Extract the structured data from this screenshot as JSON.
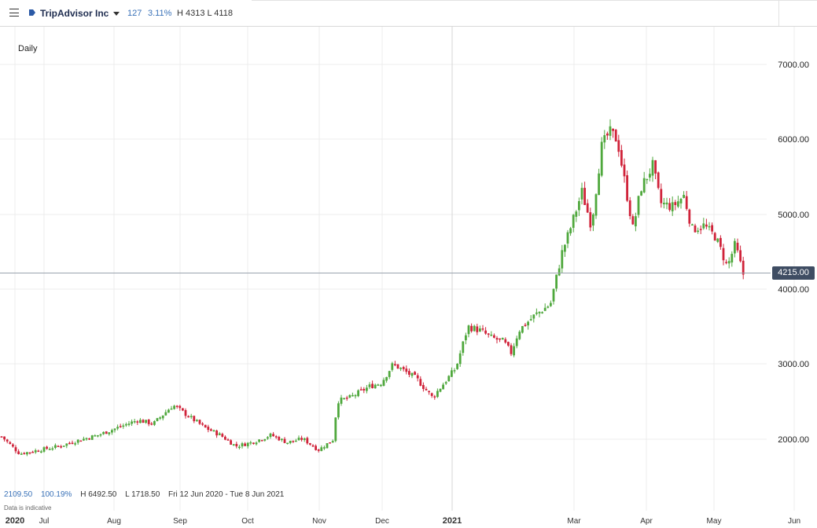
{
  "header": {
    "symbol_name": "TripAdvisor Inc",
    "change_abs": "127",
    "change_pct": "3.11%",
    "high_low": "H 4313  L 4118"
  },
  "interval_label": "Daily",
  "current_price_label": "4215.00",
  "footer": {
    "first_value": "2109.50",
    "pct_change": "100.19%",
    "high": "H 6492.50",
    "low": "L 1718.50",
    "date_range": "Fri 12 Jun 2020 - Tue 8 Jun 2021",
    "disclaimer": "Data is indicative"
  },
  "colors": {
    "up": "#4fa83d",
    "down": "#d0233a",
    "grid": "#ececec",
    "price_line": "#9aa3ad"
  },
  "chart_data": {
    "type": "candlestick",
    "y_ticks": [
      "7000.00",
      "6000.00",
      "5000.00",
      "4000.00",
      "3000.00",
      "2000.00"
    ],
    "x_labels": [
      "2020",
      "Jul",
      "Aug",
      "Sep",
      "Oct",
      "Nov",
      "Dec",
      "2021",
      "Mar",
      "Apr",
      "May",
      "Jun"
    ],
    "ylim": [
      1800,
      7500
    ],
    "grid": true,
    "current_price": 4215,
    "series": [
      {
        "values_approx_close": [
          [
            0,
            2050
          ],
          [
            25,
            1800
          ],
          [
            50,
            1850
          ],
          [
            75,
            1900
          ],
          [
            100,
            1980
          ],
          [
            125,
            2050
          ],
          [
            150,
            2150
          ],
          [
            175,
            2250
          ],
          [
            195,
            2200
          ],
          [
            220,
            2450
          ],
          [
            240,
            2300
          ],
          [
            260,
            2150
          ],
          [
            280,
            2050
          ],
          [
            300,
            1900
          ],
          [
            320,
            1950
          ],
          [
            345,
            2050
          ],
          [
            365,
            1950
          ],
          [
            385,
            2000
          ],
          [
            405,
            1850
          ],
          [
            425,
            2000
          ],
          [
            428,
            2500
          ],
          [
            445,
            2550
          ],
          [
            470,
            2700
          ],
          [
            485,
            2750
          ],
          [
            500,
            3000
          ],
          [
            515,
            2900
          ],
          [
            530,
            2800
          ],
          [
            550,
            2550
          ],
          [
            565,
            2750
          ],
          [
            580,
            2950
          ],
          [
            595,
            3500
          ],
          [
            610,
            3450
          ],
          [
            625,
            3350
          ],
          [
            640,
            3300
          ],
          [
            650,
            3150
          ],
          [
            660,
            3450
          ],
          [
            680,
            3650
          ],
          [
            700,
            3800
          ],
          [
            715,
            4500
          ],
          [
            725,
            4800
          ],
          [
            740,
            5300
          ],
          [
            752,
            4850
          ],
          [
            765,
            5900
          ],
          [
            775,
            6100
          ],
          [
            785,
            6000
          ],
          [
            795,
            5400
          ],
          [
            805,
            4800
          ],
          [
            815,
            5350
          ],
          [
            830,
            5650
          ],
          [
            840,
            5150
          ],
          [
            855,
            5100
          ],
          [
            870,
            5250
          ],
          [
            880,
            4800
          ],
          [
            895,
            4850
          ],
          [
            910,
            4700
          ],
          [
            925,
            4300
          ],
          [
            935,
            4600
          ],
          [
            945,
            4200
          ]
        ]
      }
    ]
  }
}
